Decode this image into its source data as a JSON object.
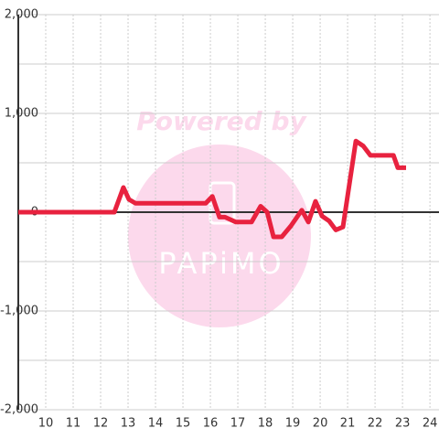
{
  "chart_data": {
    "type": "line",
    "watermark": {
      "top": "Powered by",
      "logo": "PAPiMO"
    },
    "x": [
      9,
      12.5,
      12.83,
      13.03,
      13.27,
      15.83,
      16.07,
      16.33,
      16.53,
      16.93,
      17.5,
      17.83,
      18.07,
      18.3,
      18.6,
      18.93,
      19.33,
      19.57,
      19.83,
      20.07,
      20.33,
      20.57,
      20.83,
      21.3,
      21.57,
      21.83,
      22.67,
      22.83,
      23.13
    ],
    "series": [
      {
        "color": "#e8223f",
        "values": [
          0,
          0,
          250,
          130,
          90,
          90,
          160,
          -50,
          -50,
          -100,
          -100,
          60,
          0,
          -250,
          -250,
          -140,
          20,
          -100,
          110,
          -40,
          -90,
          -180,
          -150,
          720,
          670,
          575,
          575,
          450,
          450
        ]
      }
    ],
    "xlim": [
      9,
      24.33
    ],
    "xticks": [
      10,
      11,
      12,
      13,
      14,
      15,
      16,
      17,
      18,
      19,
      20,
      21,
      22,
      23,
      24
    ],
    "ylim": [
      -2000,
      2000
    ],
    "yticks": [
      {
        "value": -2000,
        "label": "-2,000"
      },
      {
        "value": -1000,
        "label": "-1,000"
      },
      0,
      {
        "value": 1000,
        "label": "1,000"
      },
      {
        "value": 2000,
        "label": "2,000"
      }
    ],
    "grid": true
  }
}
